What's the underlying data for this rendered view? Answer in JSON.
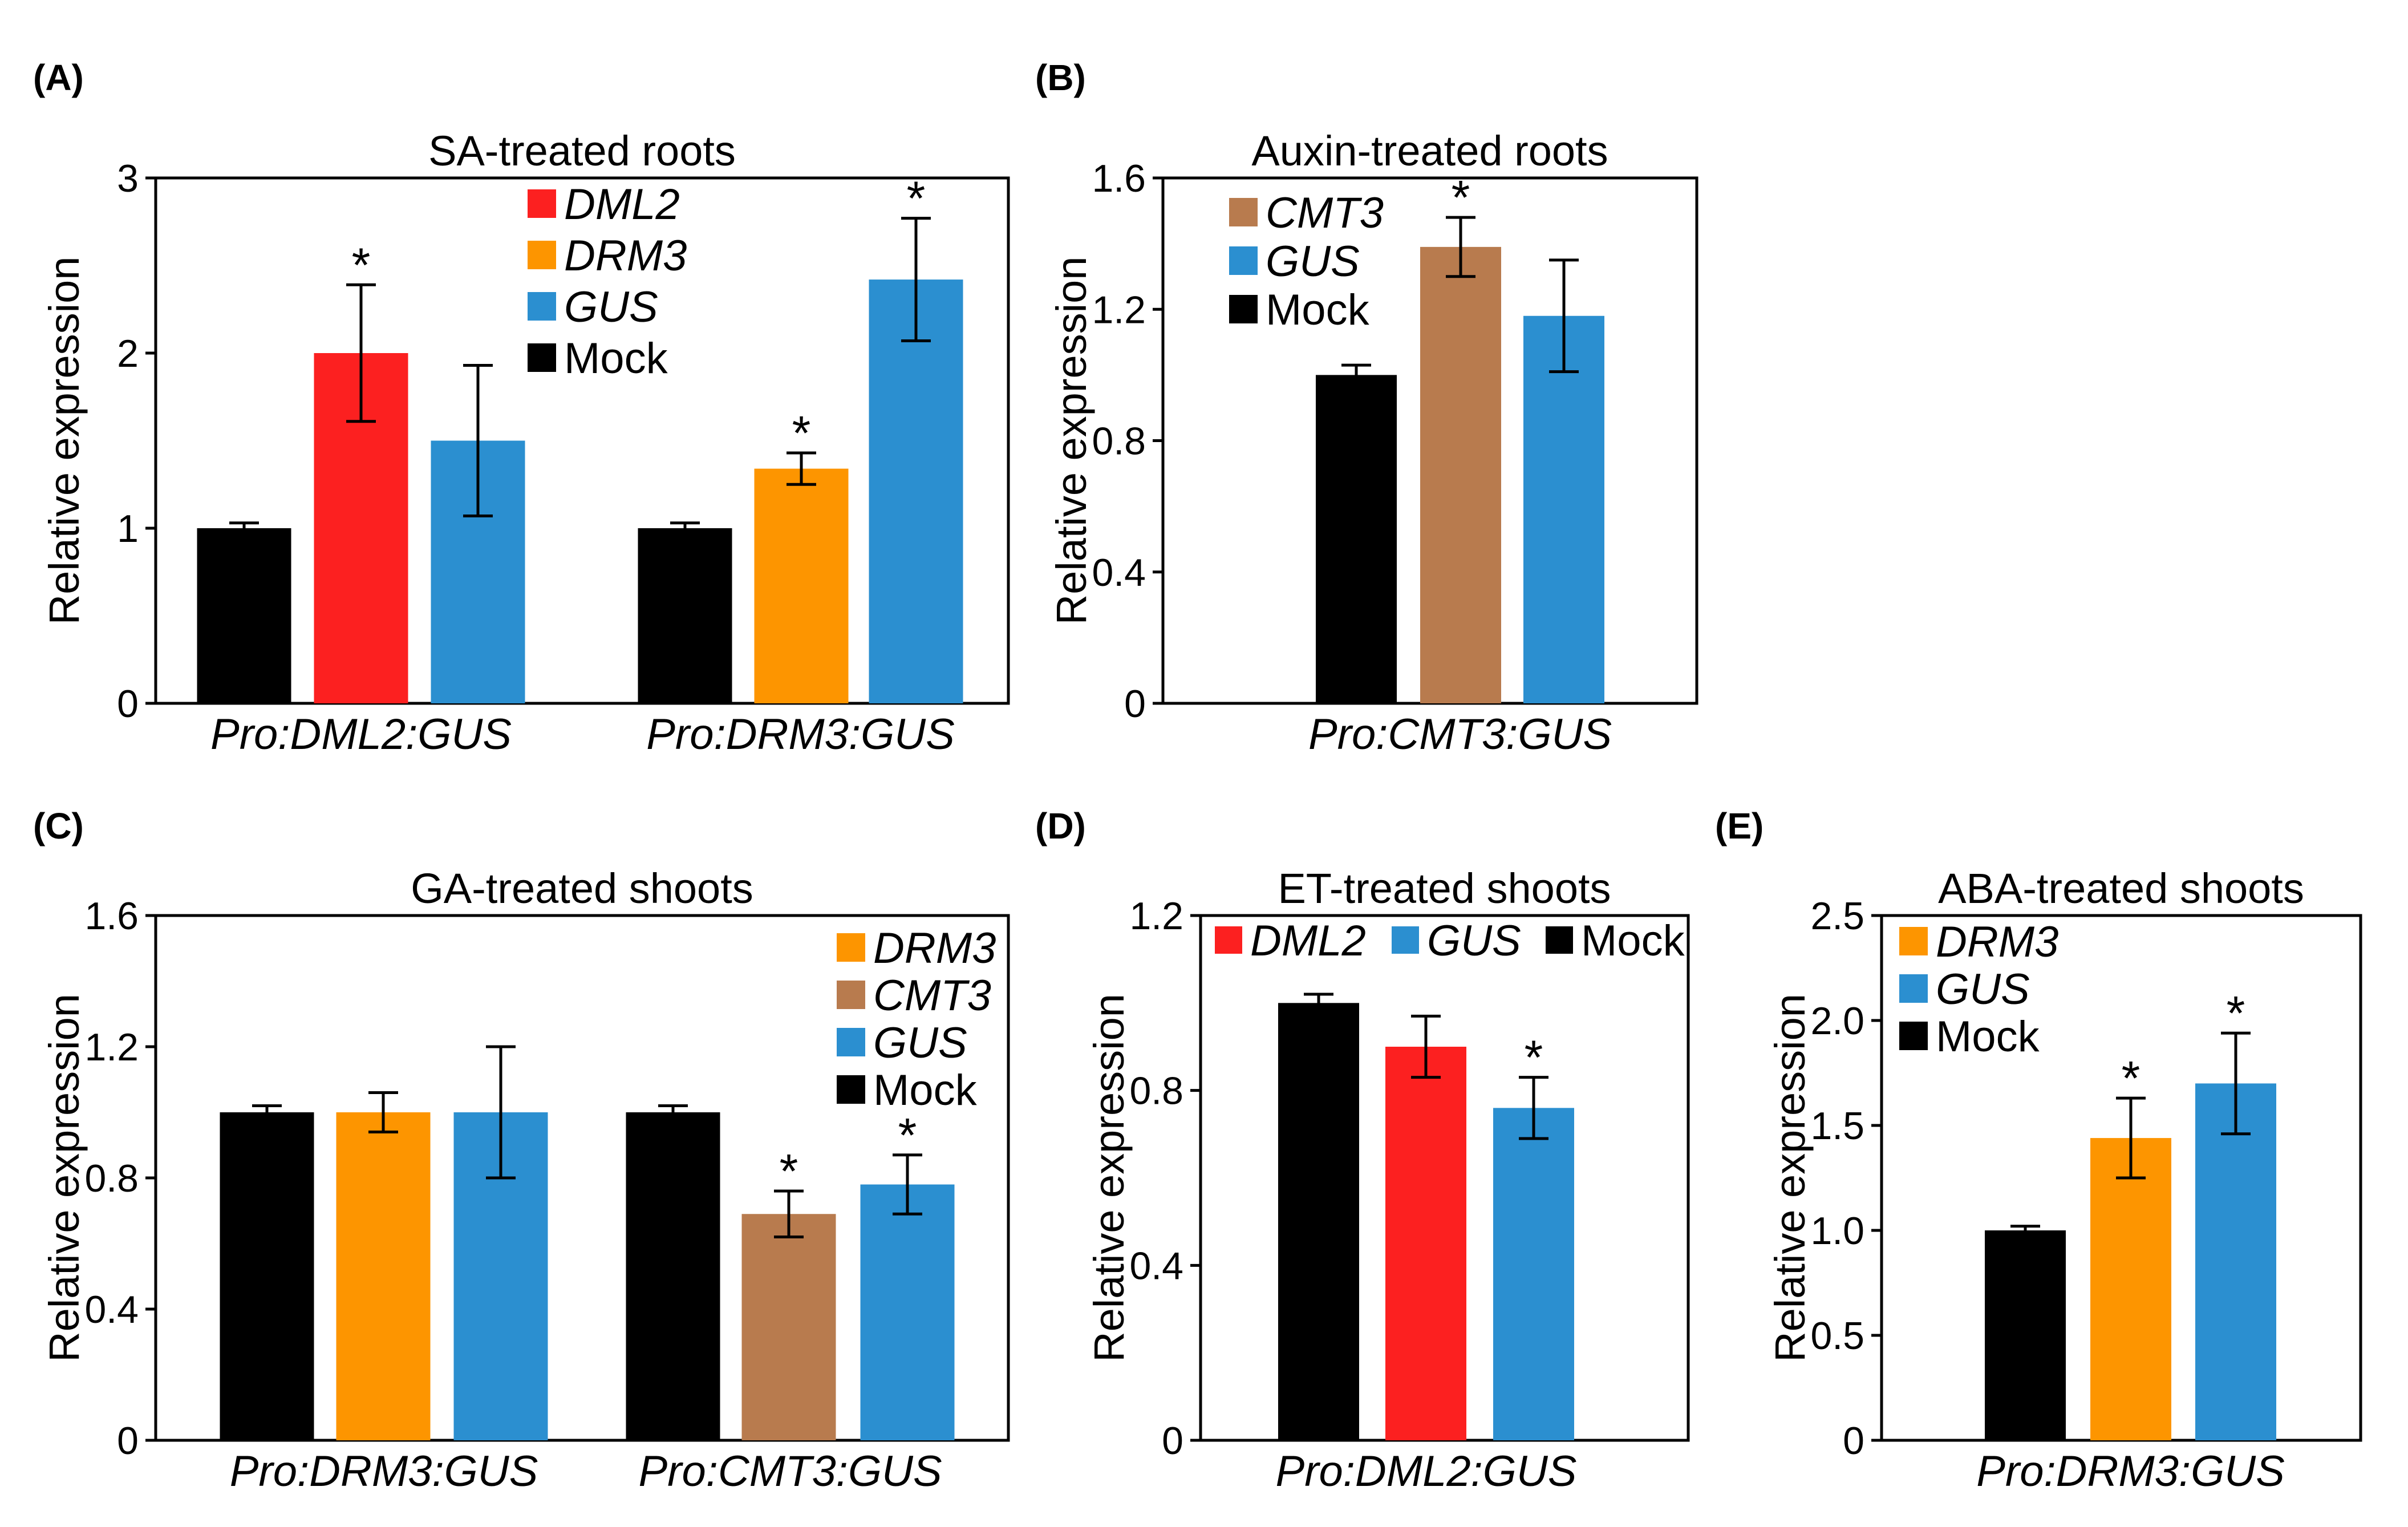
{
  "colors": {
    "black": "#000000",
    "red": "#fc2020",
    "orange": "#fd9500",
    "brown": "#b87b4e",
    "blue": "#2b8fd0"
  },
  "chart_data": [
    {
      "id": "A",
      "panel_label": "(A)",
      "type": "bar",
      "title": "SA-treated roots",
      "ylabel": "Relative expression",
      "ylim": [
        0,
        3
      ],
      "yticks": [
        "0",
        "1",
        "2",
        "3"
      ],
      "groups": [
        {
          "label": "Pro:DML2:GUS",
          "bars": [
            {
              "series": "Mock",
              "value": 1.0,
              "error": 0.03,
              "star": false
            },
            {
              "series": "DML2",
              "value": 2.0,
              "error": 0.39,
              "star": true
            },
            {
              "series": "GUS",
              "value": 1.5,
              "error": 0.43,
              "star": false
            }
          ]
        },
        {
          "label": "Pro:DRM3:GUS",
          "bars": [
            {
              "series": "Mock",
              "value": 1.0,
              "error": 0.03,
              "star": false
            },
            {
              "series": "DRM3",
              "value": 1.34,
              "error": 0.09,
              "star": true
            },
            {
              "series": "GUS",
              "value": 2.42,
              "error": 0.35,
              "star": true
            }
          ]
        }
      ],
      "legend": [
        {
          "name": "DML2",
          "italic": true
        },
        {
          "name": "DRM3",
          "italic": true
        },
        {
          "name": "GUS",
          "italic": true
        },
        {
          "name": "Mock",
          "italic": false
        }
      ],
      "legend_layout": "column",
      "star_text": "*"
    },
    {
      "id": "B",
      "panel_label": "(B)",
      "type": "bar",
      "title": "Auxin-treated roots",
      "ylabel": "Relative expression",
      "ylim": [
        0,
        1.6
      ],
      "yticks": [
        "0",
        "0.4",
        "0.8",
        "1.2",
        "1.6"
      ],
      "groups": [
        {
          "label": "Pro:CMT3:GUS",
          "bars": [
            {
              "series": "Mock",
              "value": 1.0,
              "error": 0.03,
              "star": false
            },
            {
              "series": "CMT3",
              "value": 1.39,
              "error": 0.09,
              "star": true
            },
            {
              "series": "GUS",
              "value": 1.18,
              "error": 0.17,
              "star": false
            }
          ]
        }
      ],
      "legend": [
        {
          "name": "CMT3",
          "italic": true
        },
        {
          "name": "GUS",
          "italic": true
        },
        {
          "name": "Mock",
          "italic": false
        }
      ],
      "legend_layout": "column",
      "star_text": "*"
    },
    {
      "id": "C",
      "panel_label": "(C)",
      "type": "bar",
      "title": "GA-treated shoots",
      "ylabel": "Relative expression",
      "ylim": [
        0,
        1.6
      ],
      "yticks": [
        "0",
        "0.4",
        "0.8",
        "1.2",
        "1.6"
      ],
      "groups": [
        {
          "label": "Pro:DRM3:GUS",
          "bars": [
            {
              "series": "Mock",
              "value": 1.0,
              "error": 0.02,
              "star": false
            },
            {
              "series": "DRM3",
              "value": 1.0,
              "error": 0.06,
              "star": false
            },
            {
              "series": "GUS",
              "value": 1.0,
              "error": 0.2,
              "star": false
            }
          ]
        },
        {
          "label": "Pro:CMT3:GUS",
          "bars": [
            {
              "series": "Mock",
              "value": 1.0,
              "error": 0.02,
              "star": false
            },
            {
              "series": "CMT3",
              "value": 0.69,
              "error": 0.07,
              "star": true
            },
            {
              "series": "GUS",
              "value": 0.78,
              "error": 0.09,
              "star": true
            }
          ]
        }
      ],
      "legend": [
        {
          "name": "DRM3",
          "italic": true
        },
        {
          "name": "CMT3",
          "italic": true
        },
        {
          "name": "GUS",
          "italic": true
        },
        {
          "name": "Mock",
          "italic": false
        }
      ],
      "legend_layout": "column",
      "star_text": "*"
    },
    {
      "id": "D",
      "panel_label": "(D)",
      "type": "bar",
      "title": "ET-treated shoots",
      "ylabel": "Relative expression",
      "ylim": [
        0,
        1.2
      ],
      "yticks": [
        "0",
        "0.4",
        "0.8",
        "1.2"
      ],
      "groups": [
        {
          "label": "Pro:DML2:GUS",
          "bars": [
            {
              "series": "Mock",
              "value": 1.0,
              "error": 0.02,
              "star": false
            },
            {
              "series": "DML2",
              "value": 0.9,
              "error": 0.07,
              "star": false
            },
            {
              "series": "GUS",
              "value": 0.76,
              "error": 0.07,
              "star": true
            }
          ]
        }
      ],
      "legend": [
        {
          "name": "DML2",
          "italic": true
        },
        {
          "name": "GUS",
          "italic": true
        },
        {
          "name": "Mock",
          "italic": false
        }
      ],
      "legend_layout": "row",
      "star_text": "*"
    },
    {
      "id": "E",
      "panel_label": "(E)",
      "type": "bar",
      "title": "ABA-treated shoots",
      "ylabel": "Relative expression",
      "ylim": [
        0,
        2.5
      ],
      "yticks": [
        "0",
        "0.5",
        "1.0",
        "1.5",
        "2.0",
        "2.5"
      ],
      "groups": [
        {
          "label": "Pro:DRM3:GUS",
          "bars": [
            {
              "series": "Mock",
              "value": 1.0,
              "error": 0.02,
              "star": false
            },
            {
              "series": "DRM3",
              "value": 1.44,
              "error": 0.19,
              "star": true
            },
            {
              "series": "GUS",
              "value": 1.7,
              "error": 0.24,
              "star": true
            }
          ]
        }
      ],
      "legend": [
        {
          "name": "DRM3",
          "italic": true
        },
        {
          "name": "GUS",
          "italic": true
        },
        {
          "name": "Mock",
          "italic": false
        }
      ],
      "legend_layout": "column",
      "star_text": "*"
    }
  ]
}
